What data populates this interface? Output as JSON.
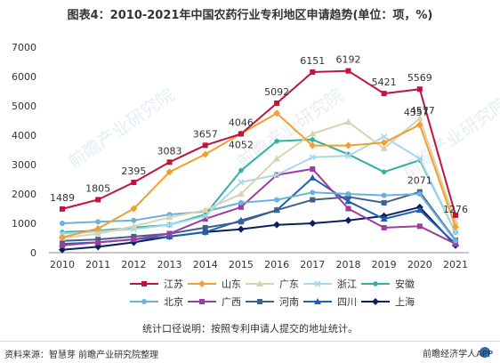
{
  "chart_data": {
    "type": "line",
    "title": "图表4：2010-2021年中国农药行业专利地区申请趋势(单位：项，%)",
    "x": [
      "2010",
      "2011",
      "2012",
      "2013",
      "2014",
      "2015",
      "2016",
      "2017",
      "2018",
      "2019",
      "2020",
      "2021"
    ],
    "ylim": [
      0,
      7000
    ],
    "yticks": [
      0,
      1000,
      2000,
      3000,
      4000,
      5000,
      6000,
      7000
    ],
    "grid": false,
    "legend": "bottom",
    "series": [
      {
        "name": "江苏",
        "color": "#c0143c",
        "marker": "square",
        "values": [
          1489,
          1805,
          2395,
          3083,
          3657,
          4046,
          5092,
          6151,
          6192,
          5421,
          5569,
          1276
        ]
      },
      {
        "name": "山东",
        "color": "#f0a030",
        "marker": "diamond",
        "values": [
          520,
          820,
          1500,
          2750,
          3350,
          4052,
          4750,
          3650,
          3650,
          3750,
          4357,
          880
        ]
      },
      {
        "name": "广东",
        "color": "#d8d4b0",
        "marker": "triangle",
        "values": [
          500,
          650,
          900,
          1200,
          1450,
          2000,
          3200,
          4050,
          4450,
          3550,
          4577,
          1050
        ]
      },
      {
        "name": "浙江",
        "color": "#a8d8e8",
        "marker": "cross",
        "values": [
          650,
          720,
          800,
          950,
          1250,
          2400,
          2650,
          3250,
          3300,
          3950,
          3200,
          700
        ]
      },
      {
        "name": "安徽",
        "color": "#30b0a0",
        "marker": "asterisk",
        "values": [
          700,
          750,
          850,
          950,
          1300,
          2800,
          3800,
          3850,
          3350,
          2750,
          3150,
          700
        ]
      },
      {
        "name": "北京",
        "color": "#6ab0e0",
        "marker": "circle",
        "values": [
          1000,
          1050,
          1100,
          1300,
          1400,
          1700,
          1800,
          2050,
          2000,
          1950,
          2000,
          400
        ]
      },
      {
        "name": "广西",
        "color": "#a03ca0",
        "marker": "square",
        "values": [
          250,
          350,
          450,
          650,
          1150,
          1550,
          2650,
          2850,
          1500,
          850,
          900,
          300
        ]
      },
      {
        "name": "河南",
        "color": "#40608c",
        "marker": "square",
        "values": [
          400,
          450,
          550,
          650,
          850,
          1050,
          1450,
          1800,
          1900,
          1700,
          2071,
          420
        ]
      },
      {
        "name": "四川",
        "color": "#2060b0",
        "marker": "triangle",
        "values": [
          300,
          350,
          450,
          550,
          700,
          1100,
          1450,
          2550,
          1750,
          1150,
          1450,
          300
        ]
      },
      {
        "name": "上海",
        "color": "#0a2060",
        "marker": "diamond",
        "values": [
          100,
          200,
          350,
          550,
          700,
          800,
          950,
          1000,
          1100,
          1250,
          1550,
          250
        ]
      }
    ],
    "data_labels": [
      {
        "series": "江苏",
        "x": "2010",
        "text": "1489"
      },
      {
        "series": "江苏",
        "x": "2011",
        "text": "1805"
      },
      {
        "series": "江苏",
        "x": "2012",
        "text": "2395"
      },
      {
        "series": "江苏",
        "x": "2013",
        "text": "3083"
      },
      {
        "series": "江苏",
        "x": "2014",
        "text": "3657"
      },
      {
        "series": "江苏",
        "x": "2015",
        "text": "4046"
      },
      {
        "series": "江苏",
        "x": "2016",
        "text": "5092"
      },
      {
        "series": "江苏",
        "x": "2017",
        "text": "6151"
      },
      {
        "series": "江苏",
        "x": "2018",
        "text": "6192"
      },
      {
        "series": "江苏",
        "x": "2019",
        "text": "5421"
      },
      {
        "series": "江苏",
        "x": "2020",
        "text": "5569"
      },
      {
        "series": "江苏",
        "x": "2021",
        "text": "1276"
      },
      {
        "series": "山东",
        "x": "2015",
        "text": "4052"
      },
      {
        "series": "山东",
        "x": "2020",
        "text": "4357"
      },
      {
        "series": "广东",
        "x": "2020",
        "text": "4577"
      },
      {
        "series": "河南",
        "x": "2020",
        "text": "2071"
      }
    ],
    "note": "统计口径说明：按照专利申请人提交的地址统计。"
  },
  "footer": {
    "source": "资料来源：智慧芽 前瞻产业研究院整理",
    "brand": "前瞻经济学人APP",
    "brand_color": "#2a6bb8"
  },
  "watermark": {
    "text": "前瞻产业研究院",
    "color": "#cfe0ef"
  }
}
